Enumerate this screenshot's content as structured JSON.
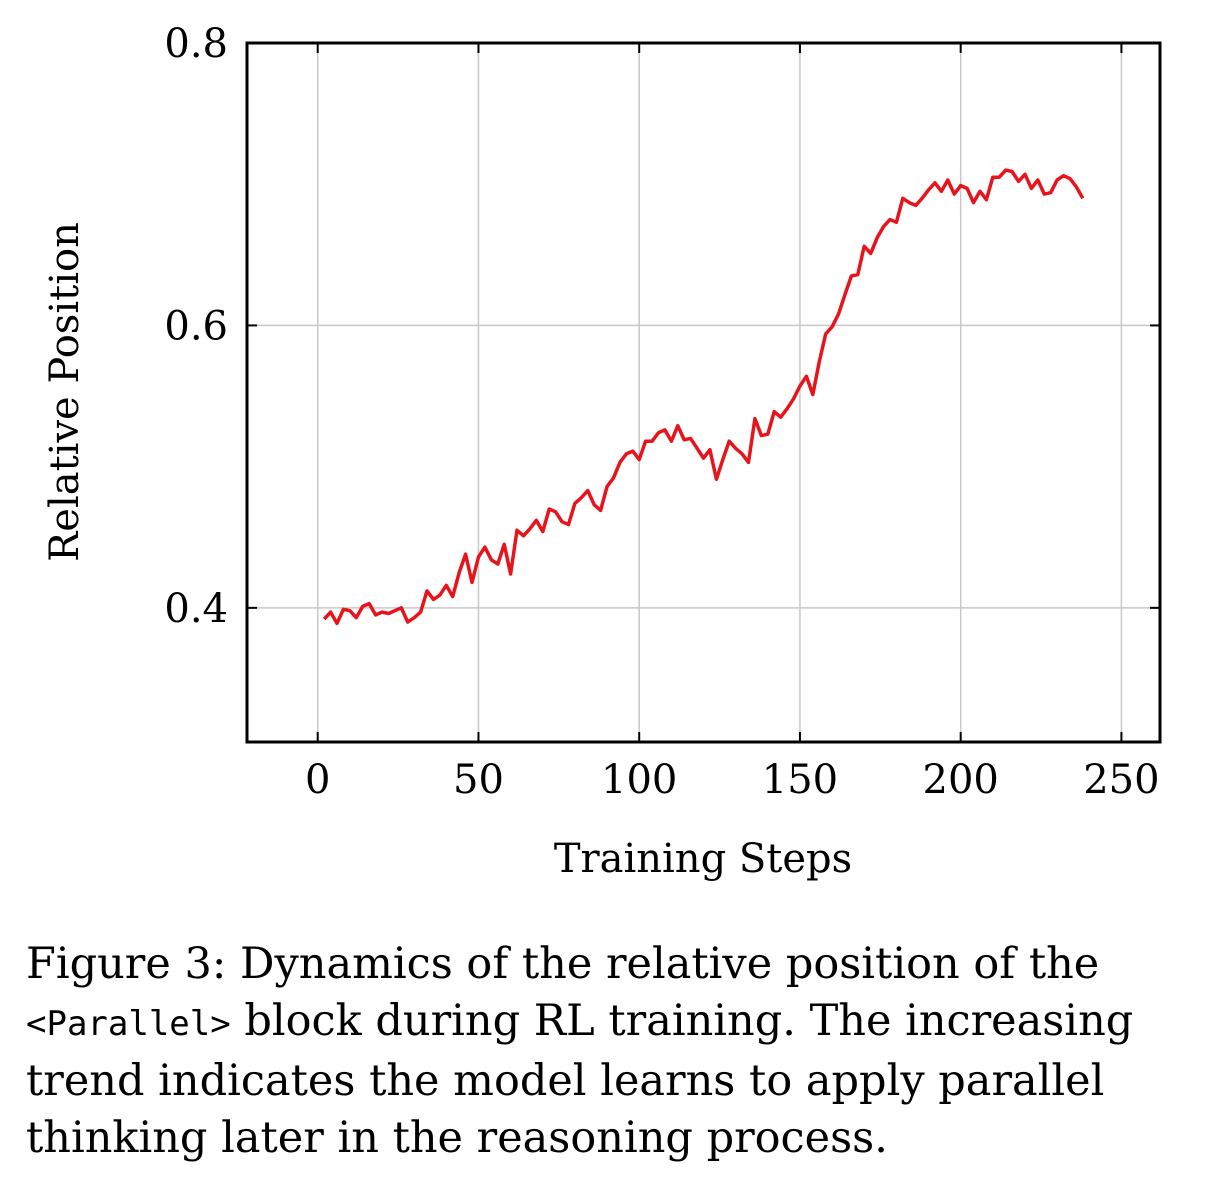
{
  "chart_data": {
    "type": "line",
    "xlabel": "Training Steps",
    "ylabel": "Relative Position",
    "xlim": [
      -22,
      262
    ],
    "ylim": [
      0.305,
      0.8
    ],
    "xticks": [
      0,
      50,
      100,
      150,
      200,
      250
    ],
    "xtick_labels": [
      "0",
      "50",
      "100",
      "150",
      "200",
      "250"
    ],
    "yticks": [
      0.4,
      0.6,
      0.8
    ],
    "ytick_labels": [
      "0.4",
      "0.6",
      "0.8"
    ],
    "grid": true,
    "series": [
      {
        "color": "#e8141c",
        "x": [
          2,
          4,
          6,
          8,
          10,
          12,
          14,
          16,
          18,
          20,
          22,
          24,
          26,
          28,
          30,
          32,
          34,
          36,
          38,
          40,
          42,
          44,
          46,
          48,
          50,
          52,
          54,
          56,
          58,
          60,
          62,
          64,
          66,
          68,
          70,
          72,
          74,
          76,
          78,
          80,
          82,
          84,
          86,
          88,
          90,
          92,
          94,
          96,
          98,
          100,
          102,
          104,
          106,
          108,
          110,
          112,
          114,
          116,
          118,
          120,
          122,
          124,
          126,
          128,
          130,
          132,
          134,
          136,
          138,
          140,
          142,
          144,
          146,
          148,
          150,
          152,
          154,
          156,
          158,
          160,
          162,
          164,
          166,
          168,
          170,
          172,
          174,
          176,
          178,
          180,
          182,
          184,
          186,
          188,
          190,
          192,
          194,
          196,
          198,
          200,
          202,
          204,
          206,
          208,
          210,
          212,
          214,
          216,
          218,
          220,
          222,
          224,
          226,
          228,
          230,
          232,
          234,
          236,
          238
        ],
        "y": [
          0.392,
          0.397,
          0.389,
          0.399,
          0.398,
          0.393,
          0.401,
          0.403,
          0.395,
          0.397,
          0.396,
          0.398,
          0.4,
          0.39,
          0.393,
          0.397,
          0.412,
          0.406,
          0.409,
          0.416,
          0.408,
          0.425,
          0.438,
          0.418,
          0.436,
          0.443,
          0.434,
          0.431,
          0.445,
          0.424,
          0.455,
          0.451,
          0.456,
          0.462,
          0.454,
          0.47,
          0.468,
          0.461,
          0.459,
          0.474,
          0.478,
          0.483,
          0.473,
          0.469,
          0.486,
          0.492,
          0.503,
          0.509,
          0.511,
          0.505,
          0.518,
          0.518,
          0.524,
          0.526,
          0.518,
          0.529,
          0.519,
          0.52,
          0.513,
          0.506,
          0.512,
          0.491,
          0.505,
          0.518,
          0.513,
          0.509,
          0.503,
          0.534,
          0.522,
          0.523,
          0.539,
          0.535,
          0.541,
          0.548,
          0.557,
          0.564,
          0.551,
          0.574,
          0.594,
          0.599,
          0.608,
          0.622,
          0.635,
          0.636,
          0.656,
          0.651,
          0.662,
          0.67,
          0.675,
          0.673,
          0.69,
          0.687,
          0.685,
          0.69,
          0.696,
          0.701,
          0.695,
          0.703,
          0.693,
          0.699,
          0.697,
          0.687,
          0.695,
          0.689,
          0.705,
          0.705,
          0.71,
          0.709,
          0.702,
          0.707,
          0.697,
          0.703,
          0.693,
          0.694,
          0.703,
          0.706,
          0.704,
          0.698,
          0.69
        ]
      }
    ]
  },
  "caption": {
    "lead": "Figure 3: Dynamics of the relative position of the",
    "code": "<Parallel>",
    "rest": " block during RL training. The increasing trend indicates the model learns to apply parallel thinking later in the reasoning process."
  }
}
